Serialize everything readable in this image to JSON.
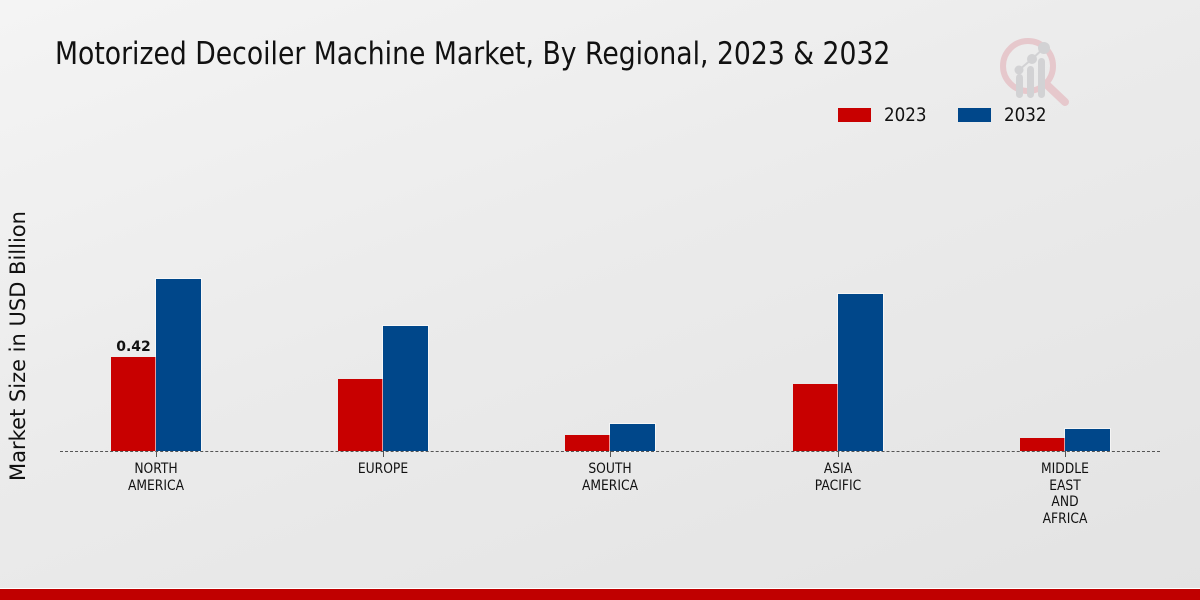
{
  "header": {
    "title": "Motorized Decoiler Machine Market, By Regional, 2023 & 2032",
    "logo_icon": "analytics-magnifier-logo-icon"
  },
  "legend": {
    "items": [
      {
        "label": "2023",
        "color": "#c80000"
      },
      {
        "label": "2032",
        "color": "#00478a"
      }
    ]
  },
  "axis": {
    "ylabel": "Market Size in USD Billion"
  },
  "colors": {
    "series_2023": "#c80000",
    "series_2032": "#00478a",
    "footer": "#c00000"
  },
  "chart_data": {
    "type": "bar",
    "title": "Motorized Decoiler Machine Market, By Regional, 2023 & 2032",
    "xlabel": "",
    "ylabel": "Market Size in USD Billion",
    "categories": [
      "NORTH AMERICA",
      "EUROPE",
      "SOUTH AMERICA",
      "ASIA PACIFIC",
      "MIDDLE EAST AND AFRICA"
    ],
    "category_labels": [
      [
        "NORTH",
        "AMERICA"
      ],
      [
        "EUROPE"
      ],
      [
        "SOUTH",
        "AMERICA"
      ],
      [
        "ASIA",
        "PACIFIC"
      ],
      [
        "MIDDLE",
        "EAST",
        "AND",
        "AFRICA"
      ]
    ],
    "series": [
      {
        "name": "2023",
        "values": [
          0.42,
          0.32,
          0.07,
          0.3,
          0.06
        ]
      },
      {
        "name": "2032",
        "values": [
          0.77,
          0.56,
          0.12,
          0.7,
          0.1
        ]
      }
    ],
    "annotations": [
      {
        "category": "NORTH AMERICA",
        "series": "2023",
        "text": "0.42"
      }
    ],
    "ylim": [
      0,
      0.74
    ],
    "grid": false,
    "legend_position": "top-right",
    "y_axis_visible": false
  }
}
